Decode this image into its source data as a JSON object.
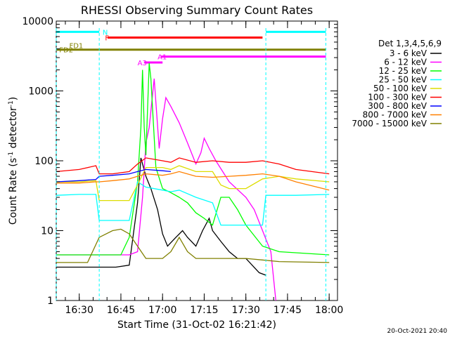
{
  "chart_data": {
    "type": "line",
    "title": "RHESSI Observing Summary Count Rates",
    "xlabel": "Start Time (31-Oct-02 16:21:42)",
    "ylabel": "Count Rate (s⁻¹ detector⁻¹)",
    "ylabel_parts": {
      "main": "Count Rate (s",
      "sup1": "-1",
      "mid": " detector",
      "sup2": "-1",
      "end": ")"
    },
    "footer": "20-Oct-2021 20:40",
    "yscale": "log",
    "xlim": [
      16.362,
      18.05
    ],
    "ylim": [
      1,
      10000
    ],
    "x_ticks": [
      "16:30",
      "16:45",
      "17:00",
      "17:15",
      "17:30",
      "17:45",
      "18:00"
    ],
    "x_tick_hours": [
      16.5,
      16.75,
      17.0,
      17.25,
      17.5,
      17.75,
      18.0
    ],
    "y_ticks": [
      "1",
      "10",
      "100",
      "1000",
      "10000"
    ],
    "y_tick_values": [
      1,
      10,
      100,
      1000,
      10000
    ],
    "legend_title": "Det 1,3,4,5,6,9",
    "legend_position": "right",
    "series": [
      {
        "name": "3 - 6 keV",
        "color": "#000000",
        "points": [
          [
            16.362,
            3
          ],
          [
            16.55,
            3
          ],
          [
            16.72,
            3
          ],
          [
            16.8,
            3.2
          ],
          [
            16.85,
            25
          ],
          [
            16.87,
            110
          ],
          [
            16.9,
            60
          ],
          [
            16.93,
            40
          ],
          [
            16.97,
            20
          ],
          [
            17.0,
            9
          ],
          [
            17.03,
            6
          ],
          [
            17.08,
            8
          ],
          [
            17.12,
            10
          ],
          [
            17.15,
            8
          ],
          [
            17.2,
            6
          ],
          [
            17.24,
            10
          ],
          [
            17.28,
            15
          ],
          [
            17.3,
            10
          ],
          [
            17.35,
            7
          ],
          [
            17.4,
            5
          ],
          [
            17.45,
            4
          ],
          [
            17.5,
            4
          ],
          [
            17.58,
            2.5
          ],
          [
            17.62,
            2.3
          ]
        ]
      },
      {
        "name": "6 - 12 keV",
        "color": "#ff00ff",
        "points": [
          [
            16.362,
            4.5
          ],
          [
            16.75,
            4.5
          ],
          [
            16.8,
            4.5
          ],
          [
            16.85,
            5
          ],
          [
            16.88,
            30
          ],
          [
            16.9,
            180
          ],
          [
            16.92,
            300
          ],
          [
            16.95,
            1500
          ],
          [
            16.98,
            150
          ],
          [
            17.0,
            400
          ],
          [
            17.02,
            800
          ],
          [
            17.05,
            600
          ],
          [
            17.1,
            350
          ],
          [
            17.15,
            180
          ],
          [
            17.2,
            90
          ],
          [
            17.23,
            130
          ],
          [
            17.25,
            210
          ],
          [
            17.28,
            150
          ],
          [
            17.32,
            100
          ],
          [
            17.4,
            50
          ],
          [
            17.5,
            30
          ],
          [
            17.55,
            20
          ],
          [
            17.6,
            10
          ],
          [
            17.65,
            5
          ],
          [
            17.68,
            1
          ]
        ]
      },
      {
        "name": "12 - 25 keV",
        "color": "#00ff00",
        "points": [
          [
            16.362,
            4.5
          ],
          [
            16.75,
            4.5
          ],
          [
            16.8,
            8
          ],
          [
            16.85,
            50
          ],
          [
            16.87,
            300
          ],
          [
            16.88,
            2000
          ],
          [
            16.89,
            300
          ],
          [
            16.9,
            120
          ],
          [
            16.92,
            2500
          ],
          [
            16.93,
            1500
          ],
          [
            16.96,
            80
          ],
          [
            17.0,
            40
          ],
          [
            17.05,
            35
          ],
          [
            17.1,
            30
          ],
          [
            17.15,
            25
          ],
          [
            17.2,
            18
          ],
          [
            17.25,
            15
          ],
          [
            17.3,
            12
          ],
          [
            17.35,
            30
          ],
          [
            17.4,
            30
          ],
          [
            17.45,
            20
          ],
          [
            17.5,
            12
          ],
          [
            17.6,
            6
          ],
          [
            17.7,
            5
          ],
          [
            18.0,
            4.5
          ]
        ]
      },
      {
        "name": "25 - 50 keV",
        "color": "#00ffff",
        "points": [
          [
            16.362,
            32
          ],
          [
            16.5,
            33
          ],
          [
            16.6,
            33
          ],
          [
            16.62,
            14
          ],
          [
            16.7,
            14
          ],
          [
            16.75,
            14
          ],
          [
            16.8,
            14
          ],
          [
            16.85,
            50
          ],
          [
            16.9,
            42
          ],
          [
            17.0,
            38
          ],
          [
            17.05,
            36
          ],
          [
            17.1,
            38
          ],
          [
            17.2,
            30
          ],
          [
            17.3,
            25
          ],
          [
            17.35,
            12
          ],
          [
            17.4,
            12
          ],
          [
            17.5,
            12
          ],
          [
            17.6,
            12
          ],
          [
            17.62,
            32
          ],
          [
            17.7,
            32
          ],
          [
            17.8,
            32
          ],
          [
            18.0,
            33
          ]
        ]
      },
      {
        "name": "50 - 100 keV",
        "color": "#dddd00",
        "points": [
          [
            16.362,
            50
          ],
          [
            16.5,
            50
          ],
          [
            16.6,
            52
          ],
          [
            16.62,
            27
          ],
          [
            16.7,
            27
          ],
          [
            16.8,
            27
          ],
          [
            16.85,
            45
          ],
          [
            16.9,
            80
          ],
          [
            17.0,
            80
          ],
          [
            17.05,
            75
          ],
          [
            17.1,
            85
          ],
          [
            17.2,
            70
          ],
          [
            17.3,
            70
          ],
          [
            17.35,
            45
          ],
          [
            17.4,
            40
          ],
          [
            17.5,
            40
          ],
          [
            17.6,
            55
          ],
          [
            17.7,
            60
          ],
          [
            17.8,
            55
          ],
          [
            18.0,
            50
          ]
        ]
      },
      {
        "name": "100 - 300 keV",
        "color": "#ff0000",
        "points": [
          [
            16.362,
            70
          ],
          [
            16.5,
            75
          ],
          [
            16.6,
            85
          ],
          [
            16.62,
            65
          ],
          [
            16.7,
            65
          ],
          [
            16.8,
            70
          ],
          [
            16.85,
            90
          ],
          [
            16.9,
            110
          ],
          [
            17.0,
            100
          ],
          [
            17.05,
            95
          ],
          [
            17.1,
            110
          ],
          [
            17.2,
            95
          ],
          [
            17.3,
            100
          ],
          [
            17.4,
            95
          ],
          [
            17.5,
            95
          ],
          [
            17.6,
            100
          ],
          [
            17.7,
            90
          ],
          [
            17.8,
            75
          ],
          [
            18.0,
            65
          ]
        ]
      },
      {
        "name": "300 - 800 keV",
        "color": "#0000ff",
        "points": [
          [
            16.362,
            50
          ],
          [
            16.5,
            52
          ],
          [
            16.6,
            54
          ],
          [
            16.62,
            60
          ],
          [
            16.7,
            62
          ],
          [
            16.8,
            65
          ],
          [
            16.85,
            70
          ],
          [
            16.9,
            75
          ],
          [
            17.0,
            72
          ],
          [
            17.05,
            70
          ]
        ]
      },
      {
        "name": "800 - 7000 keV",
        "color": "#ff8000",
        "points": [
          [
            16.362,
            48
          ],
          [
            16.5,
            48
          ],
          [
            16.6,
            50
          ],
          [
            16.62,
            50
          ],
          [
            16.7,
            52
          ],
          [
            16.8,
            55
          ],
          [
            16.85,
            60
          ],
          [
            16.9,
            65
          ],
          [
            17.0,
            62
          ],
          [
            17.05,
            65
          ],
          [
            17.1,
            70
          ],
          [
            17.2,
            60
          ],
          [
            17.3,
            58
          ],
          [
            17.4,
            60
          ],
          [
            17.5,
            62
          ],
          [
            17.6,
            65
          ],
          [
            17.7,
            60
          ],
          [
            17.8,
            50
          ],
          [
            18.0,
            38
          ]
        ]
      },
      {
        "name": "7000 - 15000 keV",
        "color": "#808000",
        "points": [
          [
            16.362,
            3.5
          ],
          [
            16.55,
            3.5
          ],
          [
            16.62,
            8
          ],
          [
            16.7,
            10
          ],
          [
            16.75,
            10.5
          ],
          [
            16.8,
            9
          ],
          [
            16.85,
            6
          ],
          [
            16.9,
            4
          ],
          [
            17.0,
            4
          ],
          [
            17.05,
            5
          ],
          [
            17.1,
            8
          ],
          [
            17.15,
            5
          ],
          [
            17.2,
            4
          ],
          [
            17.3,
            4
          ],
          [
            17.4,
            4
          ],
          [
            17.5,
            4
          ],
          [
            17.6,
            3.8
          ],
          [
            17.7,
            3.6
          ],
          [
            18.0,
            3.5
          ]
        ]
      }
    ],
    "state_bars": [
      {
        "label": "N",
        "color": "#00ffff",
        "y": 7000,
        "x0": 16.362,
        "x1": 16.62,
        "label_at": 16.64
      },
      {
        "label": "N",
        "color": "#00ffff",
        "y": 7000,
        "x0": 17.62,
        "x1": 17.98,
        "label_at": null
      },
      {
        "label": "F",
        "color": "#ff0000",
        "y": 5800,
        "x0": 16.67,
        "x1": 17.6,
        "label_at": 16.655
      },
      {
        "label": "FD1",
        "color": "#808000",
        "y": 4500,
        "x0": 16.362,
        "x1": 16.362,
        "label_at": 16.44
      },
      {
        "label": "FD2",
        "color": "#808000",
        "y": 3900,
        "x0": 16.362,
        "x1": 17.98,
        "label_at": 16.38
      },
      {
        "label": "A1",
        "color": "#ff00ff",
        "y": 3100,
        "x0": 16.99,
        "x1": 17.98,
        "label_at": 16.97
      },
      {
        "label": "A3",
        "color": "#ff00ff",
        "y": 2550,
        "x0": 16.89,
        "x1": 17.0,
        "label_at": 16.85
      }
    ],
    "vertical_markers": [
      16.362,
      16.62,
      17.62,
      17.98
    ]
  }
}
